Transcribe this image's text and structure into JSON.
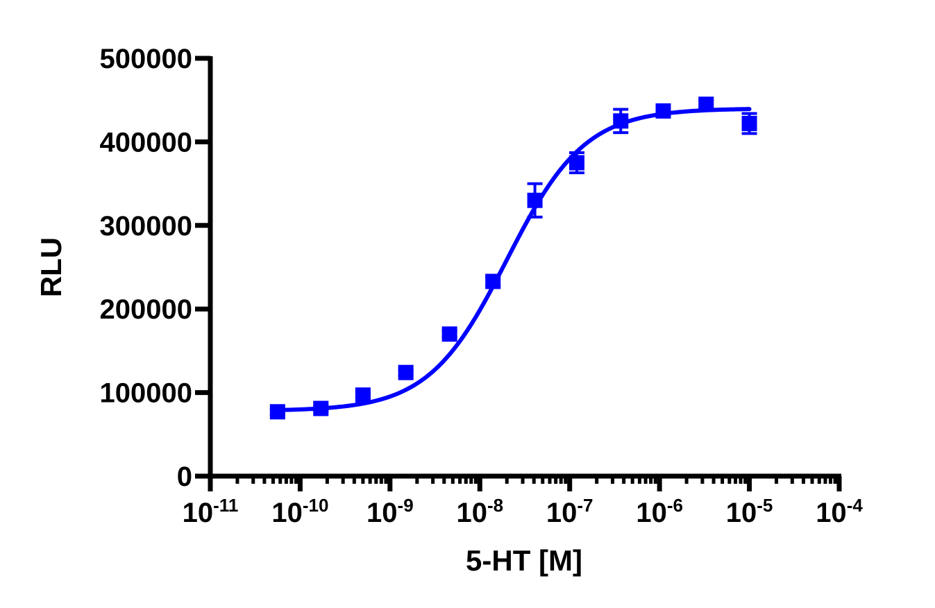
{
  "chart_data": {
    "type": "scatter",
    "xscale": "log",
    "xlabel": "5-HT [M]",
    "ylabel": "RLU",
    "xlim": [
      1e-11,
      0.0001
    ],
    "ylim": [
      0,
      500000
    ],
    "grid": false,
    "legend": "none",
    "y_ticks": [
      {
        "value": 0,
        "label": "0"
      },
      {
        "value": 100000,
        "label": "100000"
      },
      {
        "value": 200000,
        "label": "200000"
      },
      {
        "value": 300000,
        "label": "300000"
      },
      {
        "value": 400000,
        "label": "400000"
      },
      {
        "value": 500000,
        "label": "500000"
      }
    ],
    "x_ticks": [
      {
        "value": 1e-11,
        "base": "10",
        "exp": "-11"
      },
      {
        "value": 1e-10,
        "base": "10",
        "exp": "-10"
      },
      {
        "value": 1e-09,
        "base": "10",
        "exp": "-9"
      },
      {
        "value": 1e-08,
        "base": "10",
        "exp": "-8"
      },
      {
        "value": 1e-07,
        "base": "10",
        "exp": "-7"
      },
      {
        "value": 1e-06,
        "base": "10",
        "exp": "-6"
      },
      {
        "value": 1e-05,
        "base": "10",
        "exp": "-5"
      },
      {
        "value": 0.0001,
        "base": "10",
        "exp": "-4"
      }
    ],
    "series": [
      {
        "x": [
          5.6e-11,
          1.7e-10,
          5e-10,
          1.5e-09,
          4.6e-09,
          1.4e-08,
          4.1e-08,
          1.2e-07,
          3.7e-07,
          1.1e-06,
          3.3e-06,
          1e-05
        ],
        "y": [
          77000,
          81000,
          97000,
          124000,
          170000,
          233000,
          330000,
          375000,
          425000,
          437000,
          445000,
          422000
        ],
        "err": [
          3000,
          3000,
          3000,
          3000,
          4000,
          5000,
          20000,
          12000,
          14000,
          7000,
          5000,
          12000
        ]
      }
    ],
    "fit": {
      "model": "four-parameter logistic",
      "bottom": 78000,
      "top": 440000,
      "ec50": 2e-08,
      "hillslope": 1.0,
      "range": [
        5.6e-11,
        1e-05
      ]
    },
    "colors": {
      "series": "#0000ff",
      "axis": "#000000"
    }
  }
}
